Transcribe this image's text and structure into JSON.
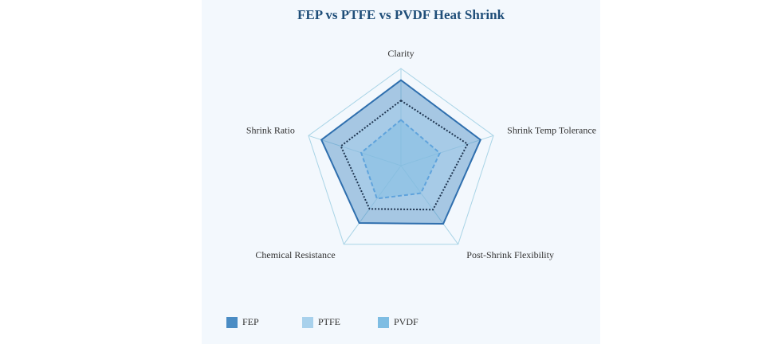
{
  "chart_data": {
    "type": "radar",
    "title": "FEP vs PTFE vs PVDF Heat Shrink",
    "categories": [
      "Clarity",
      "Shrink Temp Tolerance",
      "Post-Shrink Flexibility",
      "Chemical Resistance",
      "Shrink Ratio"
    ],
    "rlim": [
      0,
      10
    ],
    "series": [
      {
        "name": "FEP",
        "color": "#2f6fae",
        "fill": "#4a8cc4",
        "dash": "solid",
        "values": [
          8.8,
          8.6,
          7.4,
          7.3,
          8.6
        ]
      },
      {
        "name": "PTFE",
        "color": "#1f3550",
        "fill": "#a8d1ec",
        "dash": "dotted",
        "values": [
          6.7,
          7.2,
          5.6,
          5.5,
          6.5
        ]
      },
      {
        "name": "PVDF",
        "color": "#5fa3dc",
        "fill": "#7ebde3",
        "dash": "dashed",
        "values": [
          4.7,
          4.2,
          3.5,
          4.2,
          4.3
        ]
      }
    ]
  }
}
